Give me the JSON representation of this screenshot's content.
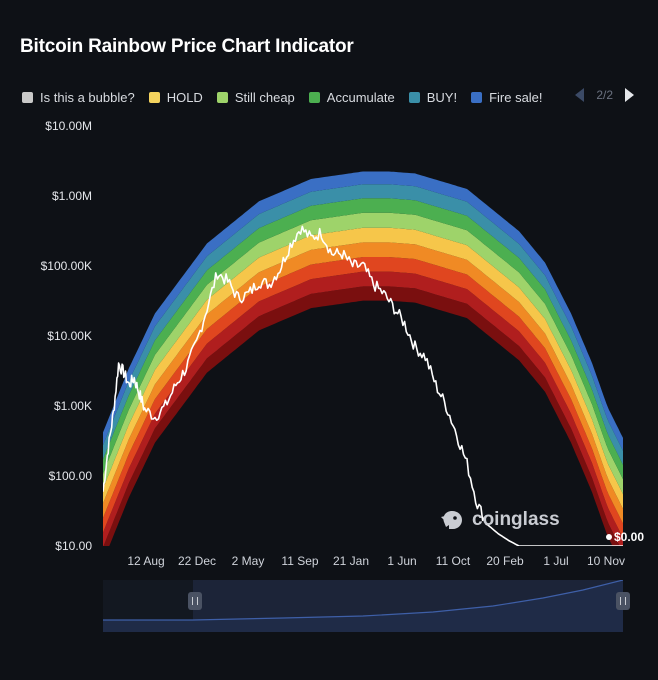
{
  "header": {
    "title": "Bitcoin Rainbow Price Chart Indicator"
  },
  "legend": [
    {
      "label": "Is this a bubble?",
      "color": "#c9c9c9"
    },
    {
      "label": "HOLD",
      "color": "#f4d35e"
    },
    {
      "label": "Still cheap",
      "color": "#9ed36a"
    },
    {
      "label": "Accumulate",
      "color": "#4caf50"
    },
    {
      "label": "BUY!",
      "color": "#3a8fa8"
    },
    {
      "label": "Fire sale!",
      "color": "#3a6fc4"
    }
  ],
  "pager": {
    "text": "2/2"
  },
  "watermark": {
    "text": "coinglass"
  },
  "chart_data": {
    "type": "area",
    "title": "Bitcoin Rainbow Price Chart Indicator",
    "yscale": "log",
    "ylim": [
      10,
      10000000
    ],
    "y_ticks": [
      10,
      100,
      1000,
      10000,
      100000,
      1000000,
      10000000
    ],
    "y_tick_labels": [
      "$10.00",
      "$100.00",
      "$1.00K",
      "$10.00K",
      "$100.00K",
      "$1.00M",
      "$10.00M"
    ],
    "x_tick_labels": [
      "12 Aug",
      "22 Dec",
      "2 May",
      "11 Sep",
      "21 Jan",
      "1 Jun",
      "11 Oct",
      "20 Feb",
      "1 Jul",
      "10 Nov"
    ],
    "band_colors": [
      "#7a0f0f",
      "#b01e1e",
      "#e0461f",
      "#f08a24",
      "#f6c64a",
      "#9ed36a",
      "#4caf50",
      "#3a8fa8",
      "#3a6fc4"
    ],
    "rainbow_base": {
      "t": [
        0,
        0.05,
        0.1,
        0.2,
        0.3,
        0.4,
        0.5,
        0.55,
        0.6,
        0.7,
        0.8,
        0.85,
        0.9,
        0.94,
        0.97,
        1.0
      ],
      "values": [
        6,
        50,
        300,
        3000,
        12000,
        25000,
        32000,
        32000,
        30000,
        18000,
        4500,
        1600,
        300,
        60,
        14,
        5
      ]
    },
    "band_multipliers": [
      1,
      1.6,
      2.6,
      4.2,
      6.8,
      11,
      18,
      29,
      46,
      70
    ],
    "price_series": {
      "name": "",
      "t": [
        0,
        0.01,
        0.02,
        0.03,
        0.04,
        0.05,
        0.06,
        0.07,
        0.08,
        0.1,
        0.12,
        0.14,
        0.16,
        0.18,
        0.2,
        0.22,
        0.24,
        0.26,
        0.28,
        0.3,
        0.32,
        0.34,
        0.36,
        0.38,
        0.4,
        0.42,
        0.44,
        0.46,
        0.48,
        0.5,
        0.52,
        0.54,
        0.56,
        0.58,
        0.6,
        0.62,
        0.64,
        0.66,
        0.68,
        0.7,
        0.72,
        0.74,
        0.76,
        0.78,
        0.8,
        0.82,
        0.84,
        0.86,
        0.88,
        0.9,
        0.91,
        0.92,
        0.93,
        0.94,
        1.0
      ],
      "values": [
        60,
        250,
        800,
        4000,
        3000,
        2000,
        2500,
        1500,
        900,
        700,
        1000,
        2000,
        3500,
        8000,
        25000,
        80000,
        60000,
        35000,
        40000,
        60000,
        55000,
        90000,
        200000,
        350000,
        250000,
        300000,
        150000,
        150000,
        100000,
        100000,
        55000,
        40000,
        25000,
        15000,
        7000,
        5000,
        2000,
        1000,
        400,
        150,
        40,
        20,
        15,
        12,
        10,
        10,
        10,
        10,
        10,
        10,
        10,
        10,
        10,
        10,
        10
      ]
    },
    "end_label": "$0.00"
  }
}
